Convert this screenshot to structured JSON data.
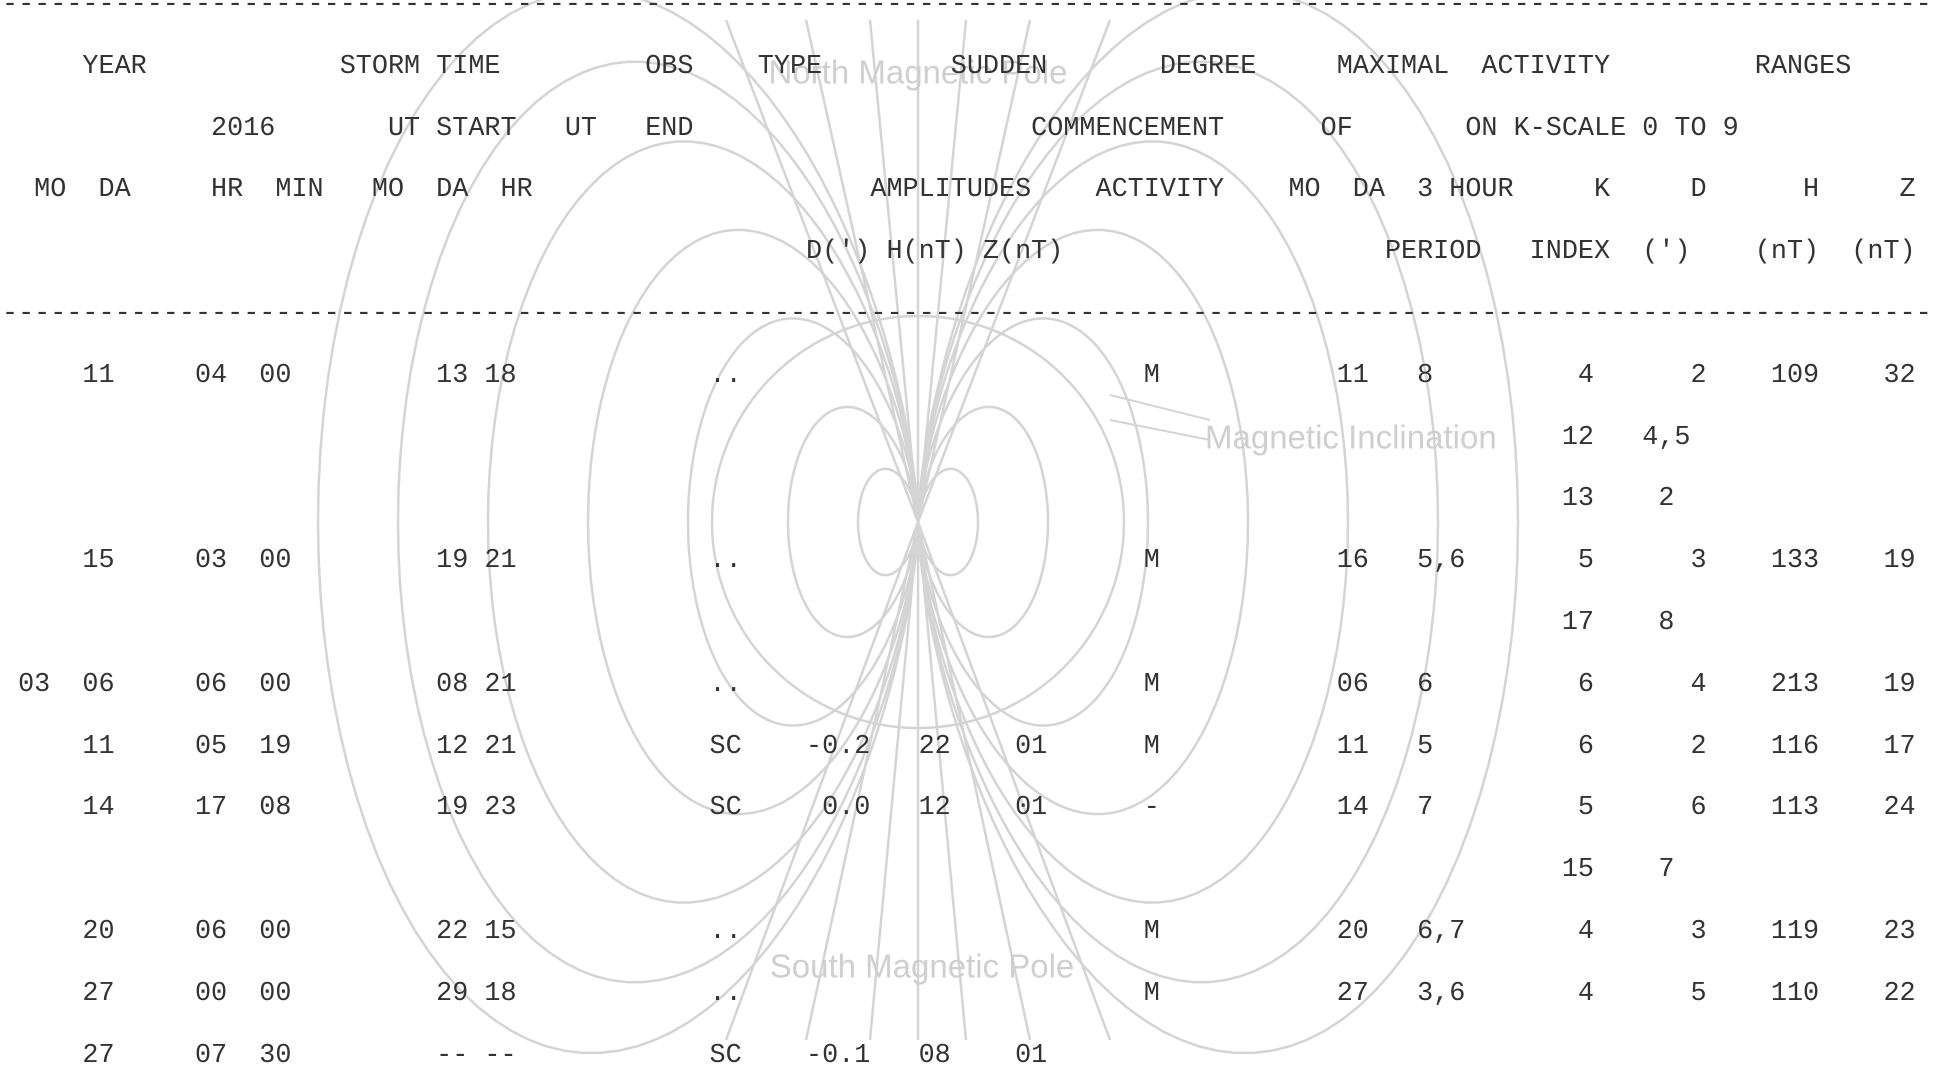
{
  "lines": [
    "------------------------------------------------------------------------------------------------------------------------",
    "     YEAR            STORM TIME         OBS    TYPE        SUDDEN       DEGREE     MAXIMAL  ACTIVITY         RANGES",
    "             2016       UT START   UT   END                     COMMENCEMENT      OF       ON K-SCALE 0 TO 9",
    "  MO  DA     HR  MIN   MO  DA  HR                     AMPLITUDES    ACTIVITY    MO  DA  3 HOUR     K     D      H     Z",
    "                                                  D(') H(nT) Z(nT)                    PERIOD   INDEX  (')    (nT)  (nT)",
    "------------------------------------------------------------------------------------------------------------------------",
    "     11     04  00         13 18            ..                         M           11   8         4      2    109    32",
    "                                                                                                 12   4,5",
    "                                                                                                 13    2",
    "     15     03  00         19 21            ..                         M           16   5,6       5      3    133    19",
    "                                                                                                 17    8",
    " 03  06     06  00         08 21            ..                         M           06   6         6      4    213    19",
    "     11     05  19         12 21            SC    -0.2   22    01      M           11   5         6      2    116    17",
    "     14     17  08         19 23            SC     0.0   12    01      -           14   7         5      6    113    24",
    "                                                                                                 15    7",
    "     20     06  00         22 15            ..                         M           20   6,7       4      3    119    23",
    "     27     00  00         29 18            ..                         M           27   3,6       4      5    110    22",
    "     27     07  30         -- --            SC    -0.1   08    01"
  ],
  "watermark": {
    "north": "North Magnetic Pole",
    "south": "South Magnetic Pole",
    "inclination": "Magnetic Inclination"
  }
}
